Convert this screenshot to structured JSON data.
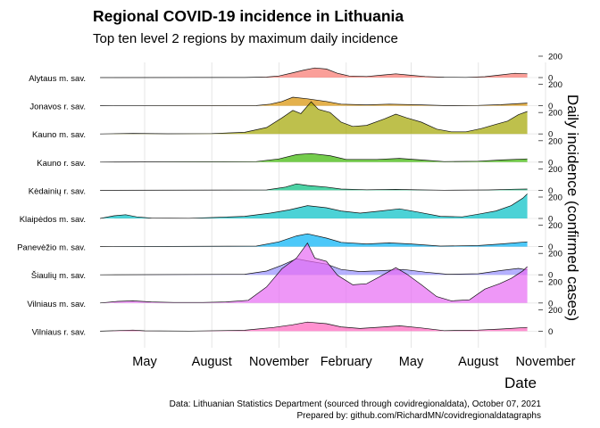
{
  "title": "Regional COVID-19 incidence in Lithuania",
  "subtitle": "Top ten level 2 regions by maximum daily incidence",
  "caption": [
    "Data: Lithuanian Statistics Department (sourced through covidregionaldata), October 07, 2021",
    "Prepared by: github.com/RichardMN/covidregionaldatagraphs"
  ],
  "chart_data": {
    "type": "area",
    "layout": "ridgeline",
    "xlabel": "Date",
    "ylabel": "Daily incidence (confirmed cases)",
    "x_range": [
      "2020-03-01",
      "2021-10-07"
    ],
    "x_ticks": [
      {
        "date": "2020-05-01",
        "label": "May"
      },
      {
        "date": "2020-08-01",
        "label": "August"
      },
      {
        "date": "2020-11-01",
        "label": "November"
      },
      {
        "date": "2021-02-01",
        "label": "February"
      },
      {
        "date": "2021-05-01",
        "label": "May"
      },
      {
        "date": "2021-08-01",
        "label": "August"
      },
      {
        "date": "2021-11-01",
        "label": "November"
      }
    ],
    "y_ticks": [
      0,
      200
    ],
    "y_max": 200,
    "grid": true,
    "series": [
      {
        "name": "Alytaus m. sav.",
        "color": "#F8766D",
        "points": [
          [
            "2020-03-01",
            0
          ],
          [
            "2020-09-15",
            1
          ],
          [
            "2020-10-15",
            5
          ],
          [
            "2020-11-01",
            15
          ],
          [
            "2020-11-20",
            45
          ],
          [
            "2020-12-05",
            70
          ],
          [
            "2020-12-20",
            90
          ],
          [
            "2021-01-05",
            80
          ],
          [
            "2021-01-20",
            40
          ],
          [
            "2021-02-05",
            15
          ],
          [
            "2021-03-01",
            10
          ],
          [
            "2021-03-25",
            25
          ],
          [
            "2021-04-10",
            35
          ],
          [
            "2021-04-25",
            25
          ],
          [
            "2021-05-20",
            10
          ],
          [
            "2021-06-15",
            3
          ],
          [
            "2021-07-15",
            2
          ],
          [
            "2021-08-10",
            8
          ],
          [
            "2021-09-01",
            25
          ],
          [
            "2021-09-20",
            40
          ],
          [
            "2021-10-07",
            35
          ]
        ]
      },
      {
        "name": "Jonavos r. sav.",
        "color": "#D89000",
        "points": [
          [
            "2020-03-01",
            0
          ],
          [
            "2020-10-01",
            2
          ],
          [
            "2020-10-20",
            15
          ],
          [
            "2020-11-05",
            40
          ],
          [
            "2020-11-20",
            80
          ],
          [
            "2020-12-10",
            65
          ],
          [
            "2021-01-05",
            40
          ],
          [
            "2021-01-25",
            15
          ],
          [
            "2021-03-01",
            8
          ],
          [
            "2021-04-01",
            15
          ],
          [
            "2021-05-15",
            8
          ],
          [
            "2021-06-15",
            2
          ],
          [
            "2021-08-01",
            3
          ],
          [
            "2021-09-01",
            10
          ],
          [
            "2021-10-07",
            25
          ]
        ]
      },
      {
        "name": "Kauno m. sav.",
        "color": "#A3A500",
        "points": [
          [
            "2020-03-01",
            0
          ],
          [
            "2020-04-15",
            5
          ],
          [
            "2020-06-01",
            2
          ],
          [
            "2020-08-01",
            3
          ],
          [
            "2020-09-15",
            15
          ],
          [
            "2020-10-15",
            60
          ],
          [
            "2020-11-05",
            150
          ],
          [
            "2020-11-20",
            220
          ],
          [
            "2020-12-01",
            190
          ],
          [
            "2020-12-15",
            300
          ],
          [
            "2020-12-25",
            230
          ],
          [
            "2021-01-10",
            200
          ],
          [
            "2021-01-25",
            110
          ],
          [
            "2021-02-10",
            70
          ],
          [
            "2021-03-01",
            80
          ],
          [
            "2021-03-25",
            140
          ],
          [
            "2021-04-10",
            185
          ],
          [
            "2021-04-25",
            150
          ],
          [
            "2021-05-15",
            110
          ],
          [
            "2021-06-05",
            45
          ],
          [
            "2021-06-25",
            20
          ],
          [
            "2021-07-15",
            20
          ],
          [
            "2021-08-05",
            50
          ],
          [
            "2021-08-25",
            90
          ],
          [
            "2021-09-10",
            120
          ],
          [
            "2021-09-25",
            180
          ],
          [
            "2021-10-07",
            210
          ]
        ]
      },
      {
        "name": "Kauno r. sav.",
        "color": "#39B600",
        "points": [
          [
            "2020-03-01",
            0
          ],
          [
            "2020-10-01",
            5
          ],
          [
            "2020-11-01",
            30
          ],
          [
            "2020-11-25",
            70
          ],
          [
            "2020-12-15",
            80
          ],
          [
            "2021-01-10",
            60
          ],
          [
            "2021-02-01",
            25
          ],
          [
            "2021-03-15",
            25
          ],
          [
            "2021-04-15",
            35
          ],
          [
            "2021-05-15",
            20
          ],
          [
            "2021-06-15",
            5
          ],
          [
            "2021-08-01",
            8
          ],
          [
            "2021-09-01",
            20
          ],
          [
            "2021-10-07",
            30
          ]
        ]
      },
      {
        "name": "Kėdainių r. sav.",
        "color": "#00BF7D",
        "points": [
          [
            "2020-03-01",
            0
          ],
          [
            "2020-10-15",
            3
          ],
          [
            "2020-11-10",
            30
          ],
          [
            "2020-11-25",
            60
          ],
          [
            "2020-12-10",
            45
          ],
          [
            "2021-01-05",
            30
          ],
          [
            "2021-01-25",
            12
          ],
          [
            "2021-03-01",
            5
          ],
          [
            "2021-04-10",
            8
          ],
          [
            "2021-05-10",
            4
          ],
          [
            "2021-06-15",
            1
          ],
          [
            "2021-08-15",
            3
          ],
          [
            "2021-09-20",
            10
          ],
          [
            "2021-10-07",
            12
          ]
        ]
      },
      {
        "name": "Klaipėdos m. sav.",
        "color": "#00BFC4",
        "points": [
          [
            "2020-03-01",
            0
          ],
          [
            "2020-03-20",
            25
          ],
          [
            "2020-04-05",
            35
          ],
          [
            "2020-04-20",
            15
          ],
          [
            "2020-05-10",
            3
          ],
          [
            "2020-07-01",
            2
          ],
          [
            "2020-08-01",
            8
          ],
          [
            "2020-09-15",
            20
          ],
          [
            "2020-10-20",
            50
          ],
          [
            "2020-11-15",
            80
          ],
          [
            "2020-12-10",
            120
          ],
          [
            "2021-01-05",
            100
          ],
          [
            "2021-01-25",
            70
          ],
          [
            "2021-02-20",
            50
          ],
          [
            "2021-03-20",
            70
          ],
          [
            "2021-04-15",
            90
          ],
          [
            "2021-05-10",
            60
          ],
          [
            "2021-06-10",
            20
          ],
          [
            "2021-07-10",
            15
          ],
          [
            "2021-08-01",
            40
          ],
          [
            "2021-08-25",
            70
          ],
          [
            "2021-09-15",
            120
          ],
          [
            "2021-10-01",
            190
          ],
          [
            "2021-10-07",
            230
          ]
        ]
      },
      {
        "name": "Panevėžio m. sav.",
        "color": "#00B0F6",
        "points": [
          [
            "2020-03-01",
            0
          ],
          [
            "2020-10-01",
            5
          ],
          [
            "2020-11-01",
            45
          ],
          [
            "2020-11-25",
            100
          ],
          [
            "2020-12-10",
            120
          ],
          [
            "2021-01-05",
            80
          ],
          [
            "2021-01-25",
            40
          ],
          [
            "2021-03-01",
            25
          ],
          [
            "2021-04-01",
            35
          ],
          [
            "2021-05-01",
            25
          ],
          [
            "2021-06-10",
            5
          ],
          [
            "2021-08-01",
            10
          ],
          [
            "2021-09-01",
            25
          ],
          [
            "2021-10-07",
            45
          ]
        ]
      },
      {
        "name": "Šiaulių m. sav.",
        "color": "#9590FF",
        "points": [
          [
            "2020-03-01",
            0
          ],
          [
            "2020-09-15",
            5
          ],
          [
            "2020-10-15",
            35
          ],
          [
            "2020-11-05",
            90
          ],
          [
            "2020-11-25",
            150
          ],
          [
            "2020-12-10",
            130
          ],
          [
            "2021-01-05",
            100
          ],
          [
            "2021-01-25",
            50
          ],
          [
            "2021-02-20",
            30
          ],
          [
            "2021-03-25",
            40
          ],
          [
            "2021-04-20",
            50
          ],
          [
            "2021-05-20",
            25
          ],
          [
            "2021-06-20",
            5
          ],
          [
            "2021-08-01",
            10
          ],
          [
            "2021-09-01",
            40
          ],
          [
            "2021-09-25",
            60
          ],
          [
            "2021-10-07",
            45
          ]
        ]
      },
      {
        "name": "Vilniaus m. sav.",
        "color": "#E76BF3",
        "points": [
          [
            "2020-03-01",
            0
          ],
          [
            "2020-03-25",
            15
          ],
          [
            "2020-04-15",
            20
          ],
          [
            "2020-05-10",
            10
          ],
          [
            "2020-06-10",
            5
          ],
          [
            "2020-07-20",
            5
          ],
          [
            "2020-08-20",
            10
          ],
          [
            "2020-09-20",
            25
          ],
          [
            "2020-10-15",
            150
          ],
          [
            "2020-11-05",
            320
          ],
          [
            "2020-11-25",
            420
          ],
          [
            "2020-12-10",
            560
          ],
          [
            "2020-12-20",
            420
          ],
          [
            "2021-01-05",
            390
          ],
          [
            "2021-01-20",
            260
          ],
          [
            "2021-02-10",
            170
          ],
          [
            "2021-03-01",
            180
          ],
          [
            "2021-03-20",
            250
          ],
          [
            "2021-04-10",
            330
          ],
          [
            "2021-04-25",
            270
          ],
          [
            "2021-05-15",
            170
          ],
          [
            "2021-06-05",
            60
          ],
          [
            "2021-06-25",
            20
          ],
          [
            "2021-07-20",
            30
          ],
          [
            "2021-08-10",
            130
          ],
          [
            "2021-08-30",
            180
          ],
          [
            "2021-09-15",
            230
          ],
          [
            "2021-10-01",
            300
          ],
          [
            "2021-10-07",
            340
          ]
        ]
      },
      {
        "name": "Vilniaus r. sav.",
        "color": "#FF62BC",
        "points": [
          [
            "2020-03-01",
            0
          ],
          [
            "2020-04-15",
            10
          ],
          [
            "2020-05-01",
            3
          ],
          [
            "2020-07-01",
            1
          ],
          [
            "2020-09-15",
            8
          ],
          [
            "2020-10-25",
            35
          ],
          [
            "2020-11-20",
            60
          ],
          [
            "2020-12-10",
            85
          ],
          [
            "2021-01-05",
            70
          ],
          [
            "2021-01-25",
            40
          ],
          [
            "2021-02-20",
            25
          ],
          [
            "2021-03-25",
            40
          ],
          [
            "2021-04-15",
            50
          ],
          [
            "2021-05-15",
            30
          ],
          [
            "2021-06-15",
            5
          ],
          [
            "2021-08-01",
            10
          ],
          [
            "2021-09-01",
            20
          ],
          [
            "2021-10-07",
            35
          ]
        ]
      }
    ]
  }
}
